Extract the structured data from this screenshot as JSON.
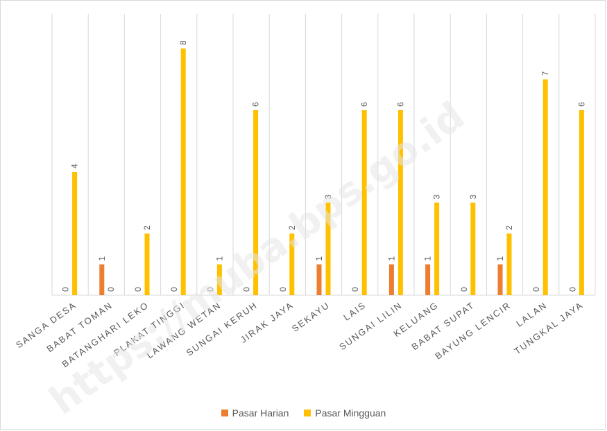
{
  "chart_data": {
    "type": "bar",
    "categories": [
      "SANGA DESA",
      "BABAT TOMAN",
      "BATANGHARI LEKO",
      "PLAKAT TINGGI",
      "LAWANG WETAN",
      "SUNGAI KERUH",
      "JIRAK JAYA",
      "SEKAYU",
      "LAIS",
      "SUNGAI LILIN",
      "KELUANG",
      "BABAT SUPAT",
      "BAYUNG LENCIR",
      "LALAN",
      "TUNGKAL JAYA"
    ],
    "series": [
      {
        "name": "Pasar Harian",
        "values": [
          0,
          1,
          0,
          0,
          0,
          0,
          0,
          1,
          0,
          1,
          1,
          0,
          1,
          0,
          0
        ],
        "color": "#ed7d31"
      },
      {
        "name": "Pasar Mingguan",
        "values": [
          4,
          0,
          2,
          8,
          1,
          6,
          2,
          3,
          6,
          6,
          3,
          3,
          2,
          7,
          6
        ],
        "color": "#ffc000"
      }
    ],
    "ylim": [
      0,
      8
    ],
    "grid": "vertical category separators",
    "legend": "bottom-center",
    "data_labels": true
  },
  "watermark": "https://muba.bps.go.id"
}
